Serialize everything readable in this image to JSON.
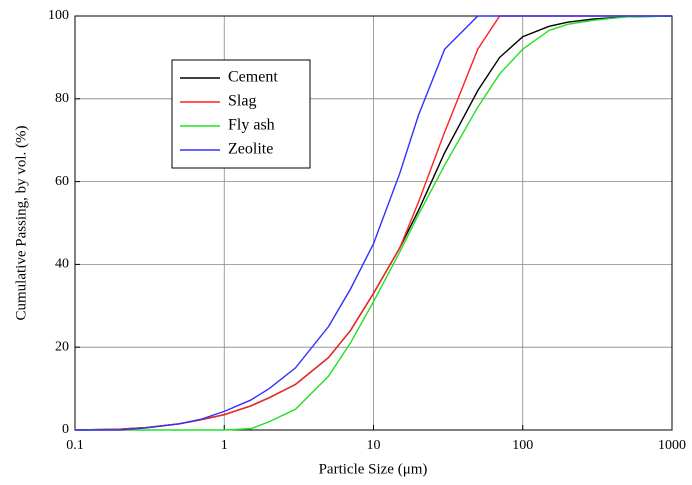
{
  "chart_data": {
    "type": "line",
    "x_label": "Particle Size (μm)",
    "y_label": "Cumulative Passing, by vol. (%)",
    "x": [
      0.1,
      0.2,
      0.3,
      0.5,
      0.7,
      1,
      1.5,
      2,
      3,
      5,
      7,
      10,
      15,
      20,
      30,
      50,
      70,
      100,
      150,
      200,
      300,
      500,
      1000
    ],
    "series": [
      {
        "name": "Cement",
        "color": "#000000",
        "values": [
          0,
          0.2,
          0.6,
          1.5,
          2.5,
          3.7,
          5.8,
          7.8,
          11,
          17.5,
          24,
          33,
          44,
          53,
          67,
          82,
          90,
          95,
          97.5,
          98.5,
          99.3,
          99.8,
          100
        ]
      },
      {
        "name": "Slag",
        "color": "#ff2020",
        "values": [
          0,
          0.2,
          0.6,
          1.5,
          2.5,
          3.7,
          5.8,
          7.8,
          11,
          17.5,
          24,
          33,
          44,
          55,
          72,
          92,
          100,
          100,
          100,
          100,
          100,
          100,
          100
        ]
      },
      {
        "name": "Fly ash",
        "color": "#22e022",
        "values": [
          0,
          0,
          0,
          0,
          0,
          0,
          0.3,
          2,
          5,
          13,
          21,
          31,
          43,
          52,
          64,
          78,
          86,
          92,
          96.5,
          98,
          99,
          99.8,
          100
        ]
      },
      {
        "name": "Zeolite",
        "color": "#3030ff",
        "values": [
          0,
          0,
          0.5,
          1.5,
          2.6,
          4.5,
          7.2,
          10,
          15,
          25,
          34,
          45,
          62,
          76,
          92,
          100,
          100,
          100,
          100,
          100,
          100,
          100,
          100
        ]
      }
    ],
    "xlim": [
      0.1,
      1000
    ],
    "xticks": [
      0.1,
      1,
      10,
      100,
      1000
    ],
    "x_log": true,
    "ylim": [
      0,
      100
    ],
    "yticks": [
      0,
      20,
      40,
      60,
      80,
      100
    ],
    "grid": true,
    "legend": "upper left"
  }
}
